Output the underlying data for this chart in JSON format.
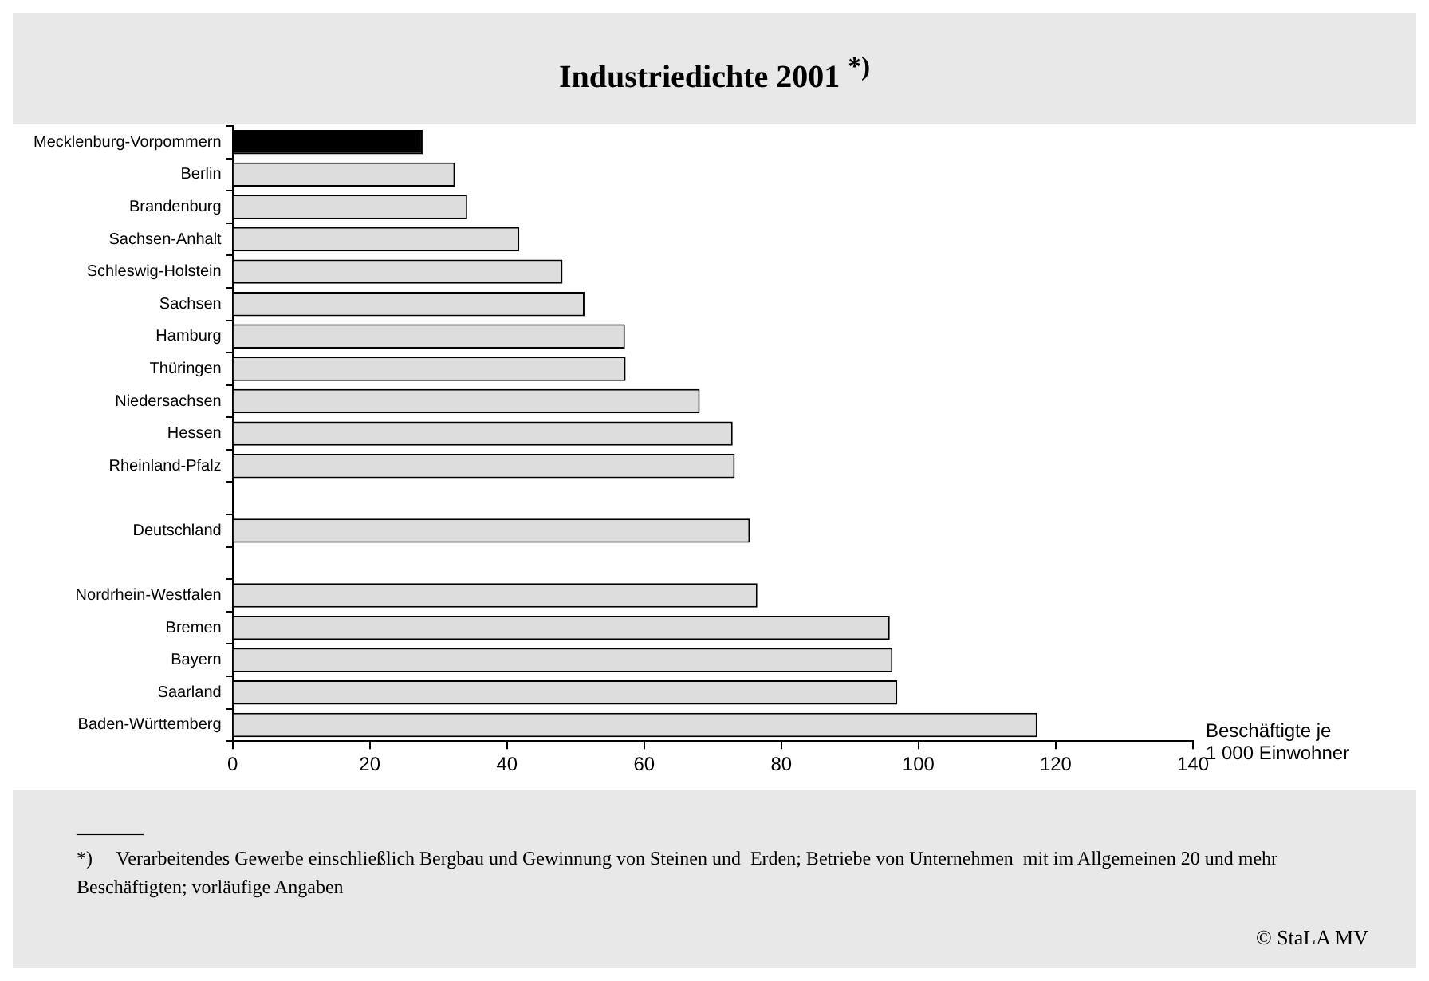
{
  "chart_data": {
    "type": "bar",
    "orientation": "horizontal",
    "title": "Industriedichte 2001 $^{*)}$",
    "xlabel": "Beschäftigte je\n1 000 Einwohner",
    "categories": [
      "Mecklenburg-Vorpommern",
      "Berlin",
      "Brandenburg",
      "Sachsen-Anhalt",
      "Schleswig-Holstein",
      "Sachsen",
      "Hamburg",
      "Thüringen",
      "Niedersachsen",
      "Hessen",
      "Rheinland-Pfalz",
      null,
      "Deutschland",
      null,
      "Nordrhein-Westfalen",
      "Bremen",
      "Bayern",
      "Saarland",
      "Baden-Württemberg"
    ],
    "values": [
      27.7,
      32.4,
      34.2,
      41.8,
      48.1,
      51.3,
      57.2,
      57.3,
      68.1,
      72.9,
      73.2,
      null,
      75.4,
      null,
      76.5,
      95.8,
      96.2,
      96.9,
      117.3
    ],
    "colors": [
      "#000000",
      "#dddddd",
      "#dddddd",
      "#dddddd",
      "#dddddd",
      "#dddddd",
      "#dddddd",
      "#dddddd",
      "#dddddd",
      "#dddddd",
      "#dddddd",
      "#dddddd",
      "#dddddd",
      "#dddddd",
      "#dddddd",
      "#dddddd",
      "#dddddd",
      "#dddddd",
      "#dddddd"
    ],
    "xlim": [
      0,
      140
    ],
    "xticks": [
      0,
      20,
      40,
      60,
      80,
      100,
      120,
      140
    ],
    "grid": false,
    "legend": false,
    "annotations": [
      "_______",
      "*)     Verarbeitendes Gewerbe einschließlich Bergbau und Gewinnung von Steinen und  Erden; Betriebe von Unternehmen  mit im Allgemeinen 20 und mehr Beschäftigten; vorläufige Angaben",
      "© StaLA MV"
    ]
  }
}
